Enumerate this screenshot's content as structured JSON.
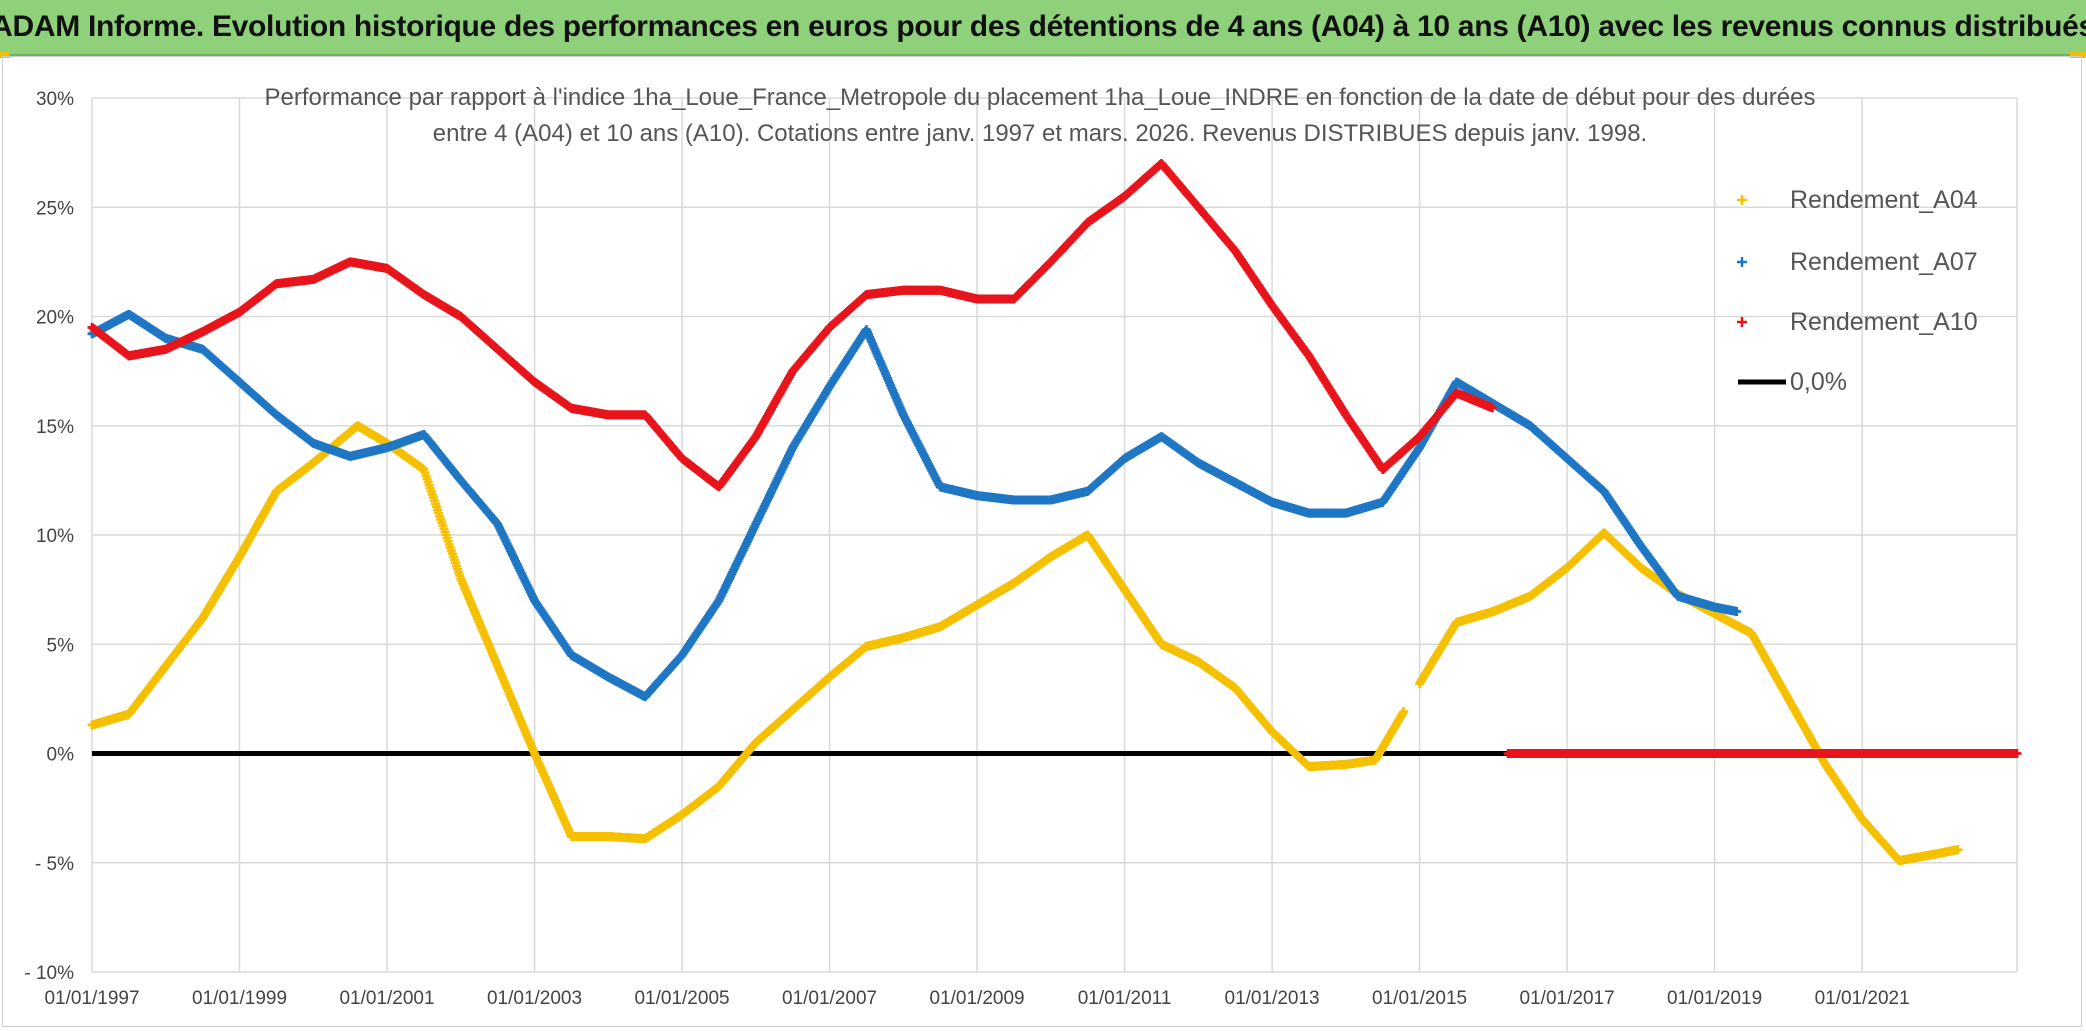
{
  "banner": {
    "text": "ADAM Informe. Evolution historique des performances en euros pour des détentions de 4 ans (A04) à 10 ans (A10) avec les revenus connus distribués"
  },
  "colors": {
    "banner_bg": "#8fd17a",
    "A04": "#f5c000",
    "A07": "#1f77c4",
    "A10": "#e8141c",
    "zero": "#000000",
    "grid": "#d9d9d9"
  },
  "chart_data": {
    "type": "scatter",
    "title_lines": [
      "Performance par rapport à l'indice 1ha_Loue_France_Metropole  du placement 1ha_Loue_INDRE en fonction de la date de début pour des durées",
      "entre 4 (A04) et 10 ans (A10). Cotations entre janv. 1997 et mars. 2026. Revenus DISTRIBUES depuis janv. 1998."
    ],
    "xlabel": "",
    "ylabel": "",
    "x_tick_labels": [
      "01/01/1997",
      "01/01/1999",
      "01/01/2001",
      "01/01/2003",
      "01/01/2005",
      "01/01/2007",
      "01/01/2009",
      "01/01/2011",
      "01/01/2013",
      "01/01/2015",
      "01/01/2017",
      "01/01/2019",
      "01/01/2021"
    ],
    "xlim": [
      1997.0,
      2023.1
    ],
    "y_tick_labels": [
      "30%",
      "25%",
      "20%",
      "15%",
      "10%",
      "5%",
      "0%",
      "- 5%",
      "- 10%"
    ],
    "y_tick_values": [
      30,
      25,
      20,
      15,
      10,
      5,
      0,
      -5,
      -10
    ],
    "ylim": [
      -10,
      30
    ],
    "grid": true,
    "legend_position": "right",
    "series": [
      {
        "name": "Rendement_A04",
        "color": "#f5c000",
        "points": [
          [
            1997.0,
            1.3
          ],
          [
            1997.5,
            1.8
          ],
          [
            1998.0,
            4.0
          ],
          [
            1998.5,
            6.2
          ],
          [
            1999.0,
            9.0
          ],
          [
            1999.5,
            12.0
          ],
          [
            2000.0,
            13.3
          ],
          [
            2000.6,
            15.0
          ],
          [
            2001.0,
            14.2
          ],
          [
            2001.5,
            13.0
          ],
          [
            2002.0,
            8.0
          ],
          [
            2002.5,
            4.0
          ],
          [
            2003.0,
            0.0
          ],
          [
            2003.5,
            -3.8
          ],
          [
            2004.0,
            -3.8
          ],
          [
            2004.5,
            -3.9
          ],
          [
            2005.0,
            -2.8
          ],
          [
            2005.5,
            -1.5
          ],
          [
            2006.0,
            0.5
          ],
          [
            2006.5,
            2.0
          ],
          [
            2007.0,
            3.5
          ],
          [
            2007.5,
            4.9
          ],
          [
            2008.0,
            5.3
          ],
          [
            2008.5,
            5.8
          ],
          [
            2009.0,
            6.8
          ],
          [
            2009.5,
            7.8
          ],
          [
            2010.0,
            9.0
          ],
          [
            2010.5,
            10.0
          ],
          [
            2011.0,
            7.5
          ],
          [
            2011.5,
            5.0
          ],
          [
            2012.0,
            4.2
          ],
          [
            2012.5,
            3.0
          ],
          [
            2013.0,
            1.0
          ],
          [
            2013.5,
            -0.6
          ],
          [
            2014.0,
            -0.5
          ],
          [
            2014.4,
            -0.3
          ],
          [
            2014.8,
            2.0
          ],
          [
            2015.0,
            3.2
          ],
          [
            2015.5,
            6.0
          ],
          [
            2016.0,
            6.5
          ],
          [
            2016.5,
            7.2
          ],
          [
            2017.0,
            8.5
          ],
          [
            2017.5,
            10.1
          ],
          [
            2018.0,
            8.5
          ],
          [
            2018.5,
            7.3
          ],
          [
            2019.0,
            6.4
          ],
          [
            2019.5,
            5.5
          ],
          [
            2020.0,
            2.5
          ],
          [
            2020.5,
            -0.5
          ],
          [
            2021.0,
            -3.0
          ],
          [
            2021.5,
            -4.9
          ],
          [
            2022.0,
            -4.6
          ],
          [
            2022.3,
            -4.4
          ]
        ]
      },
      {
        "name": "Rendement_A07",
        "color": "#1f77c4",
        "points": [
          [
            1997.0,
            19.2
          ],
          [
            1997.5,
            20.1
          ],
          [
            1998.0,
            19.0
          ],
          [
            1998.5,
            18.5
          ],
          [
            1999.0,
            17.0
          ],
          [
            1999.5,
            15.5
          ],
          [
            2000.0,
            14.2
          ],
          [
            2000.5,
            13.6
          ],
          [
            2001.0,
            14.0
          ],
          [
            2001.5,
            14.6
          ],
          [
            2002.0,
            12.5
          ],
          [
            2002.5,
            10.5
          ],
          [
            2003.0,
            7.0
          ],
          [
            2003.5,
            4.5
          ],
          [
            2004.0,
            3.5
          ],
          [
            2004.5,
            2.6
          ],
          [
            2005.0,
            4.5
          ],
          [
            2005.5,
            7.0
          ],
          [
            2006.0,
            10.5
          ],
          [
            2006.5,
            14.0
          ],
          [
            2007.0,
            16.8
          ],
          [
            2007.5,
            19.4
          ],
          [
            2008.0,
            15.5
          ],
          [
            2008.5,
            12.2
          ],
          [
            2009.0,
            11.8
          ],
          [
            2009.5,
            11.6
          ],
          [
            2010.0,
            11.6
          ],
          [
            2010.5,
            12.0
          ],
          [
            2011.0,
            13.5
          ],
          [
            2011.5,
            14.5
          ],
          [
            2012.0,
            13.3
          ],
          [
            2012.5,
            12.4
          ],
          [
            2013.0,
            11.5
          ],
          [
            2013.5,
            11.0
          ],
          [
            2014.0,
            11.0
          ],
          [
            2014.5,
            11.5
          ],
          [
            2015.0,
            14.0
          ],
          [
            2015.5,
            17.0
          ],
          [
            2016.0,
            16.0
          ],
          [
            2016.5,
            15.0
          ],
          [
            2017.0,
            13.5
          ],
          [
            2017.5,
            12.0
          ],
          [
            2018.0,
            9.5
          ],
          [
            2018.5,
            7.2
          ],
          [
            2019.0,
            6.7
          ],
          [
            2019.3,
            6.5
          ]
        ]
      },
      {
        "name": "Rendement_A10",
        "color": "#e8141c",
        "points": [
          [
            1997.0,
            19.5
          ],
          [
            1997.5,
            18.2
          ],
          [
            1998.0,
            18.5
          ],
          [
            1998.5,
            19.3
          ],
          [
            1999.0,
            20.2
          ],
          [
            1999.5,
            21.5
          ],
          [
            2000.0,
            21.7
          ],
          [
            2000.5,
            22.5
          ],
          [
            2001.0,
            22.2
          ],
          [
            2001.5,
            21.0
          ],
          [
            2002.0,
            20.0
          ],
          [
            2002.5,
            18.5
          ],
          [
            2003.0,
            17.0
          ],
          [
            2003.5,
            15.8
          ],
          [
            2004.0,
            15.5
          ],
          [
            2004.5,
            15.5
          ],
          [
            2005.0,
            13.5
          ],
          [
            2005.5,
            12.2
          ],
          [
            2006.0,
            14.5
          ],
          [
            2006.5,
            17.5
          ],
          [
            2007.0,
            19.5
          ],
          [
            2007.5,
            21.0
          ],
          [
            2008.0,
            21.2
          ],
          [
            2008.5,
            21.2
          ],
          [
            2009.0,
            20.8
          ],
          [
            2009.5,
            20.8
          ],
          [
            2010.0,
            22.5
          ],
          [
            2010.5,
            24.3
          ],
          [
            2011.0,
            25.5
          ],
          [
            2011.5,
            27.0
          ],
          [
            2012.0,
            25.0
          ],
          [
            2012.5,
            23.0
          ],
          [
            2013.0,
            20.5
          ],
          [
            2013.5,
            18.2
          ],
          [
            2014.0,
            15.5
          ],
          [
            2014.5,
            13.0
          ],
          [
            2015.0,
            14.5
          ],
          [
            2015.5,
            16.5
          ],
          [
            2016.0,
            15.8
          ],
          [
            2016.2,
            0.0
          ],
          [
            2023.1,
            0.0
          ]
        ]
      }
    ],
    "zero_line": {
      "name": "0,0%",
      "value": 0,
      "color": "#000000"
    }
  }
}
